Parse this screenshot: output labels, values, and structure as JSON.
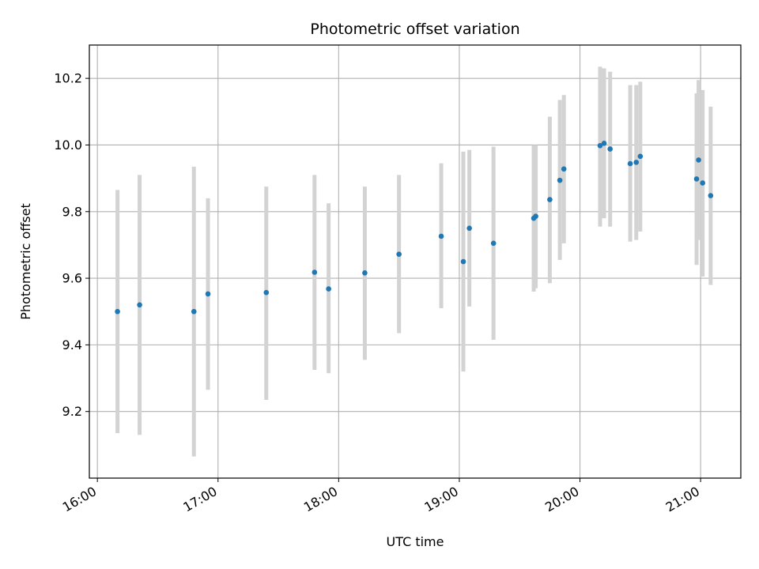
{
  "chart_data": {
    "type": "scatter",
    "title": "Photometric offset variation",
    "xlabel": "UTC time",
    "ylabel": "Photometric offset",
    "grid": true,
    "x_tick_labels": [
      "16:00",
      "17:00",
      "18:00",
      "19:00",
      "20:00",
      "21:00"
    ],
    "y_tick_labels": [
      "9.2",
      "9.4",
      "9.6",
      "9.8",
      "10.0",
      "10.2"
    ],
    "y_ticks": [
      9.2,
      9.4,
      9.6,
      9.8,
      10.0,
      10.2
    ],
    "xlim": [
      "15:56",
      "21:20"
    ],
    "ylim": [
      9.0,
      10.3
    ],
    "point_color": "#1f77b4",
    "errorbar_color": "#d3d3d3",
    "points": [
      {
        "x": "16:10",
        "y": 9.5,
        "ylow": 9.135,
        "yhigh": 9.865
      },
      {
        "x": "16:21",
        "y": 9.52,
        "ylow": 9.13,
        "yhigh": 9.91
      },
      {
        "x": "16:48",
        "y": 9.5,
        "ylow": 9.065,
        "yhigh": 9.935
      },
      {
        "x": "16:55",
        "y": 9.553,
        "ylow": 9.265,
        "yhigh": 9.84
      },
      {
        "x": "17:24",
        "y": 9.557,
        "ylow": 9.235,
        "yhigh": 9.875
      },
      {
        "x": "17:48",
        "y": 9.618,
        "ylow": 9.325,
        "yhigh": 9.91
      },
      {
        "x": "17:55",
        "y": 9.568,
        "ylow": 9.315,
        "yhigh": 9.825
      },
      {
        "x": "18:13",
        "y": 9.616,
        "ylow": 9.355,
        "yhigh": 9.875
      },
      {
        "x": "18:30",
        "y": 9.672,
        "ylow": 9.435,
        "yhigh": 9.91
      },
      {
        "x": "18:51",
        "y": 9.726,
        "ylow": 9.51,
        "yhigh": 9.945
      },
      {
        "x": "19:02",
        "y": 9.65,
        "ylow": 9.32,
        "yhigh": 9.98
      },
      {
        "x": "19:05",
        "y": 9.75,
        "ylow": 9.515,
        "yhigh": 9.985
      },
      {
        "x": "19:17",
        "y": 9.705,
        "ylow": 9.415,
        "yhigh": 9.995
      },
      {
        "x": "19:37",
        "y": 9.78,
        "ylow": 9.56,
        "yhigh": 10.0
      },
      {
        "x": "19:38",
        "y": 9.786,
        "ylow": 9.57,
        "yhigh": 10.0
      },
      {
        "x": "19:45",
        "y": 9.836,
        "ylow": 9.585,
        "yhigh": 10.085
      },
      {
        "x": "19:50",
        "y": 9.894,
        "ylow": 9.655,
        "yhigh": 10.135
      },
      {
        "x": "19:52",
        "y": 9.928,
        "ylow": 9.705,
        "yhigh": 10.15
      },
      {
        "x": "20:10",
        "y": 9.998,
        "ylow": 9.755,
        "yhigh": 10.235
      },
      {
        "x": "20:12",
        "y": 10.005,
        "ylow": 9.78,
        "yhigh": 10.23
      },
      {
        "x": "20:15",
        "y": 9.988,
        "ylow": 9.755,
        "yhigh": 10.22
      },
      {
        "x": "20:25",
        "y": 9.944,
        "ylow": 9.71,
        "yhigh": 10.18
      },
      {
        "x": "20:28",
        "y": 9.948,
        "ylow": 9.715,
        "yhigh": 10.18
      },
      {
        "x": "20:30",
        "y": 9.966,
        "ylow": 9.74,
        "yhigh": 10.19
      },
      {
        "x": "20:58",
        "y": 9.898,
        "ylow": 9.64,
        "yhigh": 10.155
      },
      {
        "x": "20:59",
        "y": 9.955,
        "ylow": 9.715,
        "yhigh": 10.195
      },
      {
        "x": "21:01",
        "y": 9.886,
        "ylow": 9.605,
        "yhigh": 10.165
      },
      {
        "x": "21:05",
        "y": 9.848,
        "ylow": 9.58,
        "yhigh": 10.115
      }
    ]
  }
}
